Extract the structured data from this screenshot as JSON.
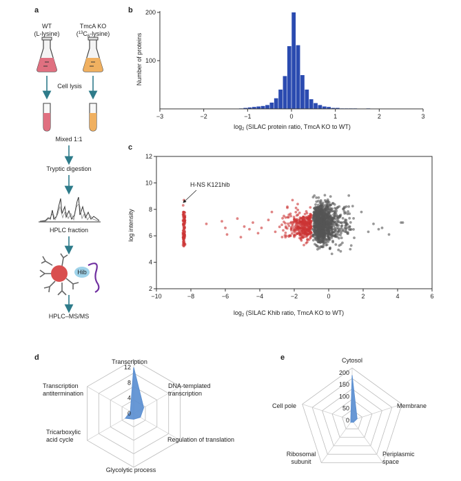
{
  "panel_labels": {
    "a": "a",
    "b": "b",
    "c": "c",
    "d": "d",
    "e": "e"
  },
  "panel_a": {
    "wt_label": "WT",
    "wt_sub": "(L-lysine)",
    "ko_label": "TmcA KO",
    "ko_sub_prefix": "(",
    "ko_sub_sup": "13",
    "ko_sub_mid": "C",
    "ko_sub_sub": "6",
    "ko_sub_suffix": "-lysine)",
    "step_lysis": "Cell lysis",
    "step_mixed": "Mixed 1:1",
    "step_digestion": "Tryptic digestion",
    "step_hplc": "HPLC fraction",
    "hib_label": "Hib",
    "step_msms": "HPLC–MS/MS",
    "colors": {
      "wt_liquid": "#e07080",
      "ko_liquid": "#f0b060",
      "arrow": "#2e7b8a",
      "bead": "#d94f4f",
      "hib": "#9fd3ea",
      "linker": "#7030a0"
    }
  },
  "chart_data": [
    {
      "id": "b",
      "type": "bar",
      "xlabel_prefix": "log",
      "xlabel_sub": "2",
      "xlabel_suffix": " (SILAC protein ratio, TmcA KO to WT)",
      "ylabel": "Number of proteins",
      "xlim": [
        -3,
        3
      ],
      "ylim": [
        0,
        200
      ],
      "xticks": [
        -3,
        -2,
        -1,
        0,
        1,
        2,
        3
      ],
      "yticks": [
        100,
        200
      ],
      "bin_width": 0.1,
      "bin_starts": [
        -1.2,
        -1.1,
        -1.0,
        -0.9,
        -0.8,
        -0.7,
        -0.6,
        -0.5,
        -0.4,
        -0.3,
        -0.2,
        -0.1,
        0.0,
        0.1,
        0.2,
        0.3,
        0.4,
        0.5,
        0.6,
        0.7,
        0.8,
        0.9,
        1.0,
        1.1,
        1.2,
        1.3,
        1.4,
        1.7
      ],
      "values": [
        1,
        2,
        3,
        4,
        5,
        6,
        8,
        13,
        22,
        40,
        68,
        130,
        200,
        132,
        70,
        40,
        20,
        12,
        8,
        5,
        4,
        2,
        2,
        1,
        1,
        1,
        1,
        1
      ],
      "color": "#2b4bb0"
    },
    {
      "id": "c",
      "type": "scatter",
      "xlabel_prefix": "log",
      "xlabel_sub": "2",
      "xlabel_suffix": " (SILAC Khib ratio, TmcA KO to WT)",
      "ylabel": "log intensity",
      "xlim": [
        -10,
        6
      ],
      "ylim": [
        2,
        12
      ],
      "xticks": [
        -10,
        -8,
        -6,
        -4,
        -2,
        0,
        2,
        4,
        6
      ],
      "yticks": [
        2,
        4,
        6,
        8,
        10,
        12
      ],
      "annotation": "H-NS K121hib",
      "annotation_point": [
        -8.4,
        8.7
      ],
      "red_color": "#cc3333",
      "gray_color": "#555555"
    },
    {
      "id": "d",
      "type": "radar",
      "categories": [
        "Transcription",
        "DNA-templated transcription",
        "Regulation of translation",
        "Glycolytic process",
        "Tricarboxylic acid cycle",
        "Transcription antitermination"
      ],
      "display_lines": [
        [
          "Transcription"
        ],
        [
          "DNA-templated",
          "transcription"
        ],
        [
          "Regulation of translation"
        ],
        [
          "Glycolytic process"
        ],
        [
          "Tricarboxylic",
          "acid cycle"
        ],
        [
          "Transcription",
          "antitermination"
        ]
      ],
      "values": [
        12,
        3,
        2,
        1.5,
        2.5,
        1
      ],
      "ticks": [
        0,
        4,
        8,
        12
      ],
      "rmax": 14,
      "color": "#5b8fd1"
    },
    {
      "id": "e",
      "type": "radar",
      "categories": [
        "Cytosol",
        "Membrane",
        "Periplasmic space",
        "Ribosomal subunit",
        "Cell pole"
      ],
      "display_lines": [
        [
          "Cytosol"
        ],
        [
          "Membrane"
        ],
        [
          "Periplasmic",
          "space"
        ],
        [
          "Ribosomal",
          "subunit"
        ],
        [
          "Cell pole"
        ]
      ],
      "values": [
        190,
        22,
        10,
        10,
        6
      ],
      "ticks": [
        0,
        50,
        100,
        150,
        200
      ],
      "rmax": 220,
      "color": "#5b8fd1"
    }
  ]
}
